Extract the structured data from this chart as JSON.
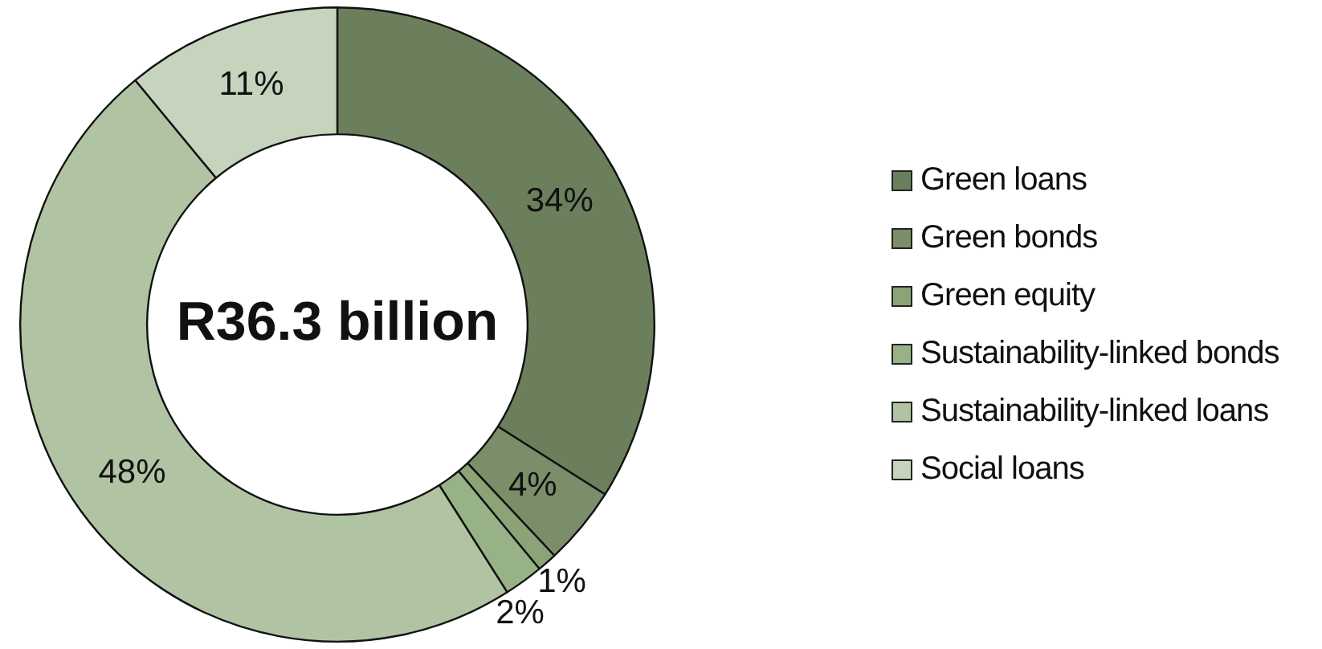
{
  "chart_data": {
    "type": "donut",
    "categories": [
      "Green loans",
      "Green bonds",
      "Green equity",
      "Sustainability-linked bonds",
      "Sustainability-linked loans",
      "Social loans"
    ],
    "values": [
      34,
      4,
      1,
      2,
      48,
      11
    ],
    "colors": [
      "#6b7f5c",
      "#7a8f69",
      "#8aa377",
      "#98b287",
      "#b0c4a4",
      "#c6d3bd"
    ],
    "value_labels": [
      "34%",
      "4%",
      "1%",
      "2%",
      "48%",
      "11%"
    ],
    "annotations": [
      "R36.3 billion"
    ],
    "legend": "right"
  }
}
